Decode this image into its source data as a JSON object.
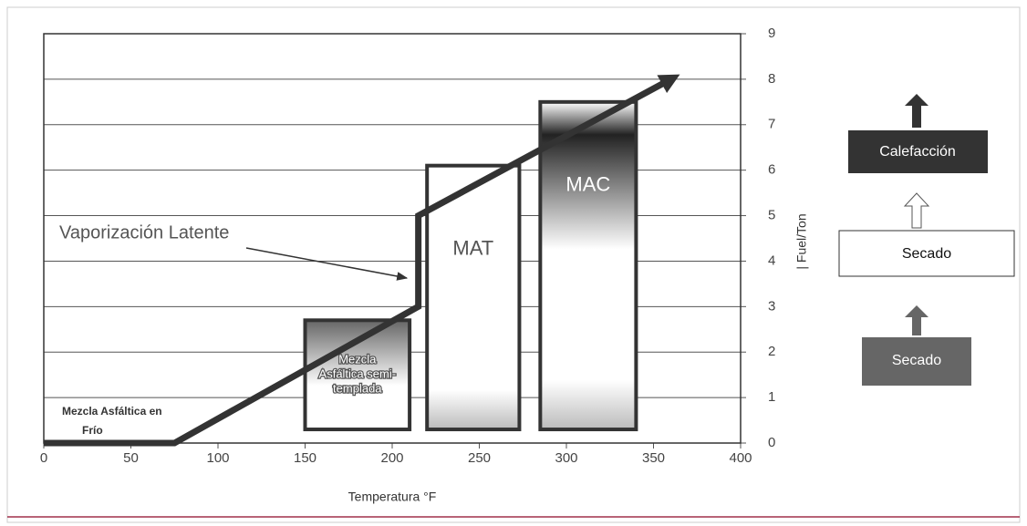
{
  "chart_data": {
    "type": "line",
    "x_label": "Temperatura °F",
    "y_label": "| Fuel/Ton",
    "xlim": [
      0,
      400
    ],
    "xticks": [
      0,
      50,
      100,
      150,
      200,
      250,
      300,
      350,
      400
    ],
    "ylim": [
      0,
      9
    ],
    "yticks": [
      0,
      1,
      2,
      3,
      4,
      5,
      6,
      7,
      8,
      9
    ],
    "grid": true,
    "series": [
      {
        "color": "#333333",
        "x": [
          0,
          75,
          215,
          215,
          360
        ],
        "values": [
          0,
          0,
          3,
          5,
          8
        ]
      }
    ],
    "regions": [
      {
        "label": [
          "Mezcla",
          "Asfáltica semi-",
          "templada"
        ],
        "x0": 150,
        "x1": 210,
        "bottom": 0.3,
        "top": 2.7
      },
      {
        "label": [
          "MAT"
        ],
        "x0": 220,
        "x1": 273,
        "bottom": 0.3,
        "top": 6.1
      },
      {
        "label": [
          "MAC"
        ],
        "x0": 285,
        "x1": 340,
        "bottom": 0.3,
        "top": 7.5
      }
    ],
    "annotations": {
      "cold": [
        "Mezcla Asfáltica en",
        "Frío"
      ],
      "latent": "Vaporización Latente"
    },
    "flow": [
      "Calefacción",
      "Secado",
      "Secado"
    ]
  }
}
